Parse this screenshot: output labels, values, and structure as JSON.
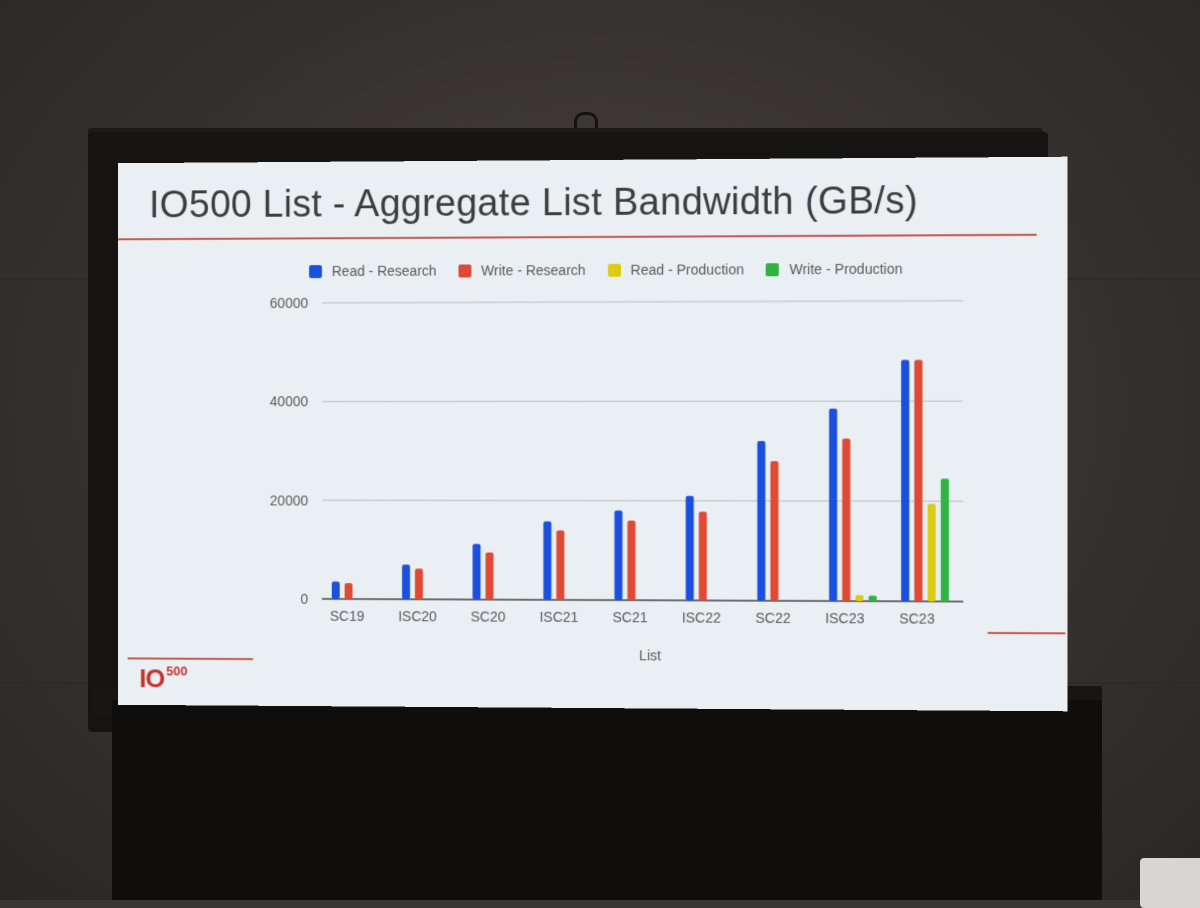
{
  "slide": {
    "title": "IO500 List - Aggregate List Bandwidth (GB/s)",
    "logo_main": "IO",
    "logo_sup": "500"
  },
  "colors": {
    "read_research": "#1a4fe0",
    "write_research": "#e04a35",
    "read_production": "#dccc14",
    "write_production": "#2fb342",
    "accent_rule": "#c55a4e"
  },
  "chart_data": {
    "type": "bar",
    "title": "IO500 List - Aggregate List Bandwidth (GB/s)",
    "xlabel": "List",
    "ylabel": "",
    "ylim": [
      0,
      60000
    ],
    "yticks": [
      "0",
      "20000",
      "40000",
      "60000"
    ],
    "grid": true,
    "legend_position": "top",
    "categories": [
      "SC19",
      "ISC20",
      "SC20",
      "ISC21",
      "SC21",
      "ISC22",
      "SC22",
      "ISC23",
      "SC23"
    ],
    "series": [
      {
        "name": "Read - Research",
        "color": "#1a4fe0",
        "values": [
          3500,
          7000,
          11200,
          15800,
          18000,
          21000,
          32000,
          38500,
          48200
        ]
      },
      {
        "name": "Write - Research",
        "color": "#e04a35",
        "values": [
          3200,
          6200,
          9500,
          14000,
          16000,
          17800,
          28000,
          32500,
          48200
        ]
      },
      {
        "name": "Read - Production",
        "color": "#dccc14",
        "values": [
          0,
          0,
          0,
          0,
          0,
          0,
          0,
          1200,
          19500
        ]
      },
      {
        "name": "Write - Production",
        "color": "#2fb342",
        "values": [
          0,
          0,
          0,
          0,
          0,
          0,
          0,
          1100,
          24500
        ]
      }
    ]
  }
}
